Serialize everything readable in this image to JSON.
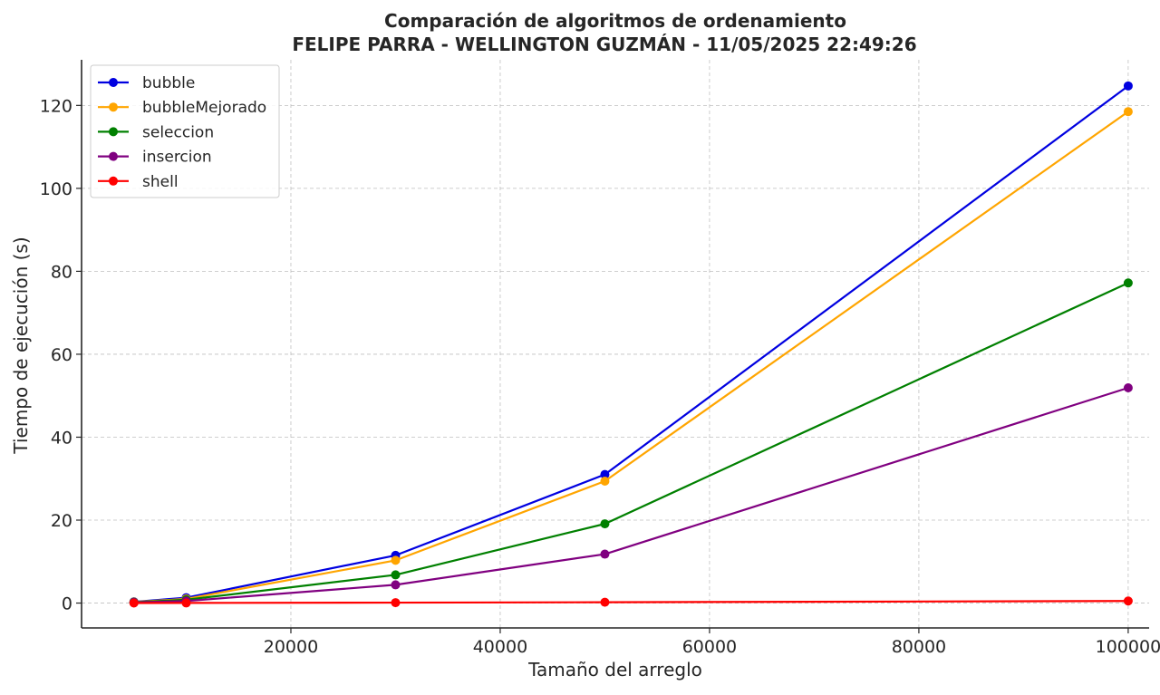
{
  "chart_data": {
    "type": "line",
    "title": "Comparación de algoritmos de ordenamiento",
    "subtitle": "FELIPE PARRA - WELLINGTON GUZMÁN - 11/05/2025 22:49:26",
    "xlabel": "Tamaño del arreglo",
    "ylabel": "Tiempo de ejecución (s)",
    "xlim": [
      0,
      102000
    ],
    "ylim": [
      -6,
      131
    ],
    "x_ticks": [
      20000,
      40000,
      60000,
      80000,
      100000
    ],
    "x_tick_labels": [
      "20000",
      "40000",
      "60000",
      "80000",
      "100000"
    ],
    "y_ticks": [
      0,
      20,
      40,
      60,
      80,
      100,
      120
    ],
    "y_tick_labels": [
      "0",
      "20",
      "40",
      "60",
      "80",
      "100",
      "120"
    ],
    "grid": true,
    "legend_position": "top-left",
    "x": [
      5000,
      10000,
      30000,
      50000,
      100000
    ],
    "series": [
      {
        "name": "bubble",
        "color": "#0000e0",
        "values": [
          0.3,
          1.3,
          11.5,
          31.0,
          124.7
        ]
      },
      {
        "name": "bubbleMejorado",
        "color": "#ffa500",
        "values": [
          0.25,
          1.0,
          10.3,
          29.4,
          118.5
        ]
      },
      {
        "name": "seleccion",
        "color": "#008000",
        "values": [
          0.2,
          0.8,
          6.8,
          19.1,
          77.2
        ]
      },
      {
        "name": "insercion",
        "color": "#800080",
        "values": [
          0.15,
          0.5,
          4.4,
          11.8,
          51.9
        ]
      },
      {
        "name": "shell",
        "color": "#ff0000",
        "values": [
          0.01,
          0.03,
          0.1,
          0.2,
          0.5
        ]
      }
    ]
  }
}
